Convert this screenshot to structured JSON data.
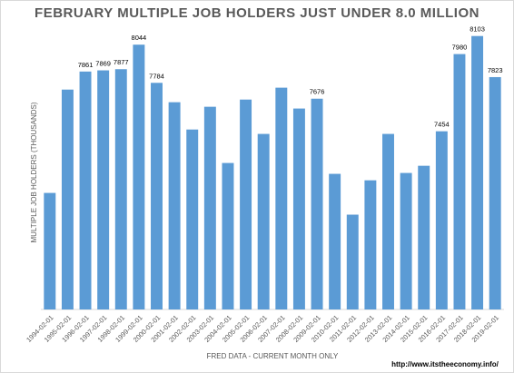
{
  "chart_data": {
    "type": "bar",
    "title": "FEBRUARY  MULTIPLE JOB HOLDERS JUST UNDER 8.0 MILLION",
    "y_label": "MULTIPLE JOB HOLDERS (THOUSANDS)",
    "x_label": "FRED DATA - CURRENT MONTH ONLY",
    "source": "http://www.itstheeconomy.info/",
    "categories": [
      "1994-02-01",
      "1995-02-01",
      "1996-02-01",
      "1997-02-01",
      "1998-02-01",
      "1999-02-01",
      "2000-02-01",
      "2001-02-01",
      "2002-02-01",
      "2003-02-01",
      "2004-02-01",
      "2005-02-01",
      "2006-02-01",
      "2007-02-01",
      "2008-02-01",
      "2009-02-01",
      "2010-02-01",
      "2011-02-01",
      "2012-02-01",
      "2013-02-01",
      "2014-02-01",
      "2015-02-01",
      "2016-02-01",
      "2017-02-01",
      "2018-02-01",
      "2019-02-01"
    ],
    "values": [
      7034,
      7738,
      7861,
      7869,
      7877,
      8044,
      7784,
      7652,
      7466,
      7621,
      7238,
      7670,
      7436,
      7751,
      7609,
      7676,
      7164,
      6886,
      7120,
      7436,
      7170,
      7219,
      7454,
      7980,
      8103,
      7823
    ],
    "value_labels": [
      null,
      null,
      "7861",
      "7869",
      "7877",
      "8044",
      "7784",
      null,
      null,
      null,
      null,
      null,
      null,
      null,
      null,
      "7676",
      null,
      null,
      null,
      null,
      null,
      null,
      "7454",
      "7980",
      "8103",
      "7823"
    ],
    "color": "#5b9bd5",
    "ylim": [
      6240,
      8200
    ]
  }
}
